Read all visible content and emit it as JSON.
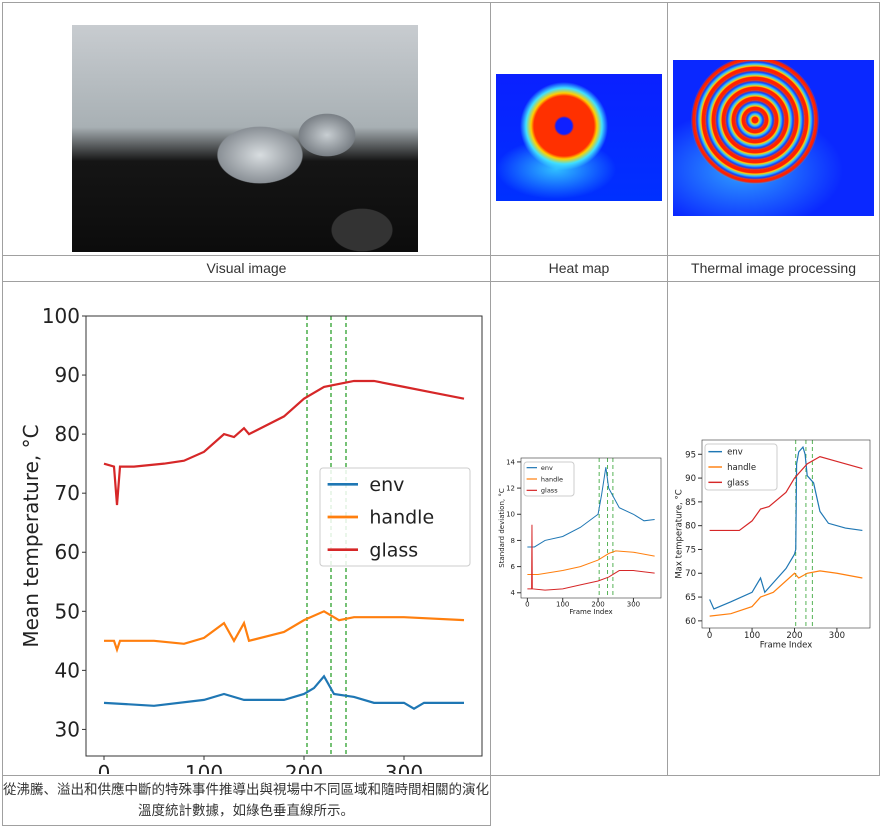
{
  "labels": {
    "visual": "Visual image",
    "heat": "Heat map",
    "thermal": "Thermal image processing"
  },
  "caption": "從沸騰、溢出和供應中斷的特殊事件推導出與視場中不同區域和隨時間相關的演化溫度統計數據，如綠色垂直線所示。",
  "colors": {
    "env": "#1f77b4",
    "handle": "#ff7f0e",
    "glass": "#d62728",
    "vline": "#2ca02c"
  },
  "chart_data": [
    {
      "type": "line",
      "xlabel": "Frame Index",
      "ylabel": "Mean temperature, °C",
      "xlim": [
        -18,
        378
      ],
      "ylim": [
        25.5,
        100
      ],
      "xticks": [
        0,
        100,
        200,
        300
      ],
      "yticks": [
        30,
        40,
        50,
        60,
        70,
        80,
        90,
        100
      ],
      "vlines": [
        203,
        227,
        242
      ],
      "legend": "center-right",
      "series": [
        {
          "name": "env",
          "values": [
            [
              0,
              34.5
            ],
            [
              50,
              34
            ],
            [
              100,
              35
            ],
            [
              120,
              36
            ],
            [
              140,
              35
            ],
            [
              180,
              35
            ],
            [
              200,
              36
            ],
            [
              210,
              37
            ],
            [
              220,
              39
            ],
            [
              230,
              36
            ],
            [
              250,
              35.5
            ],
            [
              270,
              34.5
            ],
            [
              300,
              34.5
            ],
            [
              310,
              33.5
            ],
            [
              320,
              34.5
            ],
            [
              360,
              34.5
            ]
          ]
        },
        {
          "name": "handle",
          "values": [
            [
              0,
              45
            ],
            [
              10,
              45
            ],
            [
              13,
              43.5
            ],
            [
              16,
              45
            ],
            [
              50,
              45
            ],
            [
              80,
              44.5
            ],
            [
              100,
              45.5
            ],
            [
              120,
              48
            ],
            [
              130,
              45
            ],
            [
              140,
              48
            ],
            [
              145,
              45
            ],
            [
              180,
              46.5
            ],
            [
              200,
              48.5
            ],
            [
              220,
              50
            ],
            [
              235,
              48.5
            ],
            [
              250,
              49
            ],
            [
              300,
              49
            ],
            [
              360,
              48.5
            ]
          ]
        },
        {
          "name": "glass",
          "values": [
            [
              0,
              75
            ],
            [
              10,
              74.5
            ],
            [
              13,
              68
            ],
            [
              16,
              74.5
            ],
            [
              30,
              74.5
            ],
            [
              60,
              75
            ],
            [
              80,
              75.5
            ],
            [
              100,
              77
            ],
            [
              120,
              80
            ],
            [
              130,
              79.5
            ],
            [
              140,
              81
            ],
            [
              145,
              80
            ],
            [
              180,
              83
            ],
            [
              200,
              86
            ],
            [
              220,
              88
            ],
            [
              250,
              89
            ],
            [
              270,
              89
            ],
            [
              300,
              88
            ],
            [
              330,
              87
            ],
            [
              360,
              86
            ]
          ]
        }
      ]
    },
    {
      "type": "line",
      "xlabel": "Frame Index",
      "ylabel": "Standard deviation, °C",
      "xlim": [
        -18,
        378
      ],
      "ylim": [
        3.6,
        14.3
      ],
      "xticks": [
        0,
        100,
        200,
        300
      ],
      "yticks": [
        4,
        6,
        8,
        10,
        12,
        14
      ],
      "vlines": [
        203,
        227,
        242
      ],
      "legend": "top-left",
      "series": [
        {
          "name": "env",
          "values": [
            [
              0,
              7.5
            ],
            [
              20,
              7.5
            ],
            [
              50,
              8
            ],
            [
              100,
              8.3
            ],
            [
              150,
              9
            ],
            [
              200,
              10
            ],
            [
              210,
              11.5
            ],
            [
              222,
              13.6
            ],
            [
              230,
              12
            ],
            [
              260,
              10.5
            ],
            [
              300,
              10
            ],
            [
              330,
              9.5
            ],
            [
              360,
              9.6
            ]
          ]
        },
        {
          "name": "handle",
          "values": [
            [
              0,
              5.4
            ],
            [
              30,
              5.4
            ],
            [
              100,
              5.7
            ],
            [
              150,
              6
            ],
            [
              200,
              6.5
            ],
            [
              230,
              7
            ],
            [
              250,
              7.2
            ],
            [
              300,
              7.1
            ],
            [
              360,
              6.8
            ]
          ]
        },
        {
          "name": "glass",
          "values": [
            [
              0,
              4.3
            ],
            [
              12,
              4.3
            ],
            [
              13,
              9.2
            ],
            [
              14,
              4.3
            ],
            [
              50,
              4.2
            ],
            [
              100,
              4.3
            ],
            [
              150,
              4.6
            ],
            [
              200,
              4.9
            ],
            [
              230,
              5.2
            ],
            [
              260,
              5.7
            ],
            [
              300,
              5.7
            ],
            [
              360,
              5.5
            ]
          ]
        }
      ]
    },
    {
      "type": "line",
      "xlabel": "Frame Index",
      "ylabel": "Max temperature, °C",
      "xlim": [
        -18,
        378
      ],
      "ylim": [
        58.5,
        98
      ],
      "xticks": [
        0,
        100,
        200,
        300
      ],
      "yticks": [
        60,
        65,
        70,
        75,
        80,
        85,
        90,
        95
      ],
      "vlines": [
        203,
        227,
        242
      ],
      "legend": "top-left",
      "series": [
        {
          "name": "env",
          "values": [
            [
              0,
              64.5
            ],
            [
              10,
              62.5
            ],
            [
              50,
              64
            ],
            [
              100,
              66
            ],
            [
              120,
              69
            ],
            [
              130,
              66
            ],
            [
              150,
              68
            ],
            [
              180,
              71
            ],
            [
              200,
              74
            ],
            [
              203,
              75
            ],
            [
              205,
              93
            ],
            [
              210,
              95.5
            ],
            [
              220,
              96.5
            ],
            [
              225,
              95
            ],
            [
              230,
              90.5
            ],
            [
              245,
              89
            ],
            [
              260,
              83
            ],
            [
              280,
              80.5
            ],
            [
              320,
              79.5
            ],
            [
              360,
              79
            ]
          ]
        },
        {
          "name": "handle",
          "values": [
            [
              0,
              61
            ],
            [
              50,
              61.5
            ],
            [
              100,
              63
            ],
            [
              120,
              65
            ],
            [
              150,
              66
            ],
            [
              200,
              70
            ],
            [
              210,
              69
            ],
            [
              230,
              70
            ],
            [
              260,
              70.5
            ],
            [
              300,
              70
            ],
            [
              360,
              69
            ]
          ]
        },
        {
          "name": "glass",
          "values": [
            [
              0,
              79
            ],
            [
              70,
              79
            ],
            [
              100,
              81
            ],
            [
              120,
              83.5
            ],
            [
              140,
              84
            ],
            [
              180,
              87
            ],
            [
              200,
              90
            ],
            [
              230,
              93
            ],
            [
              260,
              94.5
            ],
            [
              300,
              93.5
            ],
            [
              360,
              92
            ]
          ]
        }
      ]
    }
  ]
}
